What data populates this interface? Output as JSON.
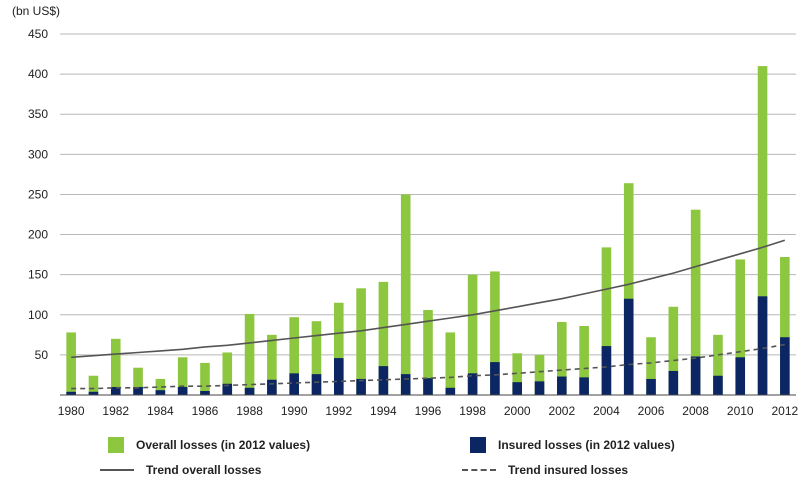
{
  "chart_data": {
    "type": "bar",
    "ylabel": "(bn US$)",
    "ylim": [
      0,
      450
    ],
    "yticks": [
      50,
      100,
      150,
      200,
      250,
      300,
      350,
      400,
      450
    ],
    "x": [
      1980,
      1981,
      1982,
      1983,
      1984,
      1985,
      1986,
      1987,
      1988,
      1989,
      1990,
      1991,
      1992,
      1993,
      1994,
      1995,
      1996,
      1997,
      1998,
      1999,
      2000,
      2001,
      2002,
      2003,
      2004,
      2005,
      2006,
      2007,
      2008,
      2009,
      2010,
      2011,
      2012
    ],
    "xtick_labels": [
      "1980",
      "1982",
      "1984",
      "1986",
      "1988",
      "1990",
      "1992",
      "1994",
      "1996",
      "1998",
      "2000",
      "2002",
      "2004",
      "2006",
      "2008",
      "2010",
      "2012"
    ],
    "series": [
      {
        "name": "Overall losses (in 2012 values)",
        "color": "#8dc63f",
        "values": [
          78,
          24,
          70,
          34,
          20,
          47,
          40,
          53,
          101,
          75,
          97,
          92,
          115,
          133,
          141,
          250,
          106,
          78,
          150,
          154,
          52,
          50,
          91,
          86,
          184,
          264,
          72,
          110,
          231,
          75,
          169,
          410,
          172
        ]
      },
      {
        "name": "Insured losses (in 2012 values)",
        "color": "#0b2663",
        "values": [
          4,
          4,
          10,
          10,
          6,
          10,
          5,
          14,
          9,
          19,
          27,
          26,
          46,
          20,
          36,
          26,
          21,
          9,
          27,
          41,
          16,
          17,
          23,
          22,
          61,
          120,
          20,
          30,
          48,
          24,
          47,
          123,
          72
        ]
      },
      {
        "name": "Trend overall losses",
        "type": "line",
        "style": "solid",
        "color": "#555555",
        "values": [
          47,
          49,
          51,
          53,
          55,
          57,
          60,
          62,
          65,
          68,
          71,
          74,
          77,
          80,
          84,
          88,
          92,
          96,
          100,
          105,
          110,
          115,
          120,
          126,
          132,
          138,
          145,
          152,
          160,
          168,
          176,
          184,
          193
        ]
      },
      {
        "name": "Trend insured losses",
        "type": "line",
        "style": "dashed",
        "color": "#555555",
        "values": [
          8,
          8,
          9,
          9,
          10,
          11,
          11,
          12,
          13,
          14,
          15,
          16,
          17,
          18,
          19,
          20,
          21,
          22,
          24,
          25,
          27,
          29,
          31,
          33,
          35,
          38,
          40,
          43,
          46,
          50,
          54,
          58,
          63
        ]
      }
    ],
    "legend": "bottom"
  }
}
